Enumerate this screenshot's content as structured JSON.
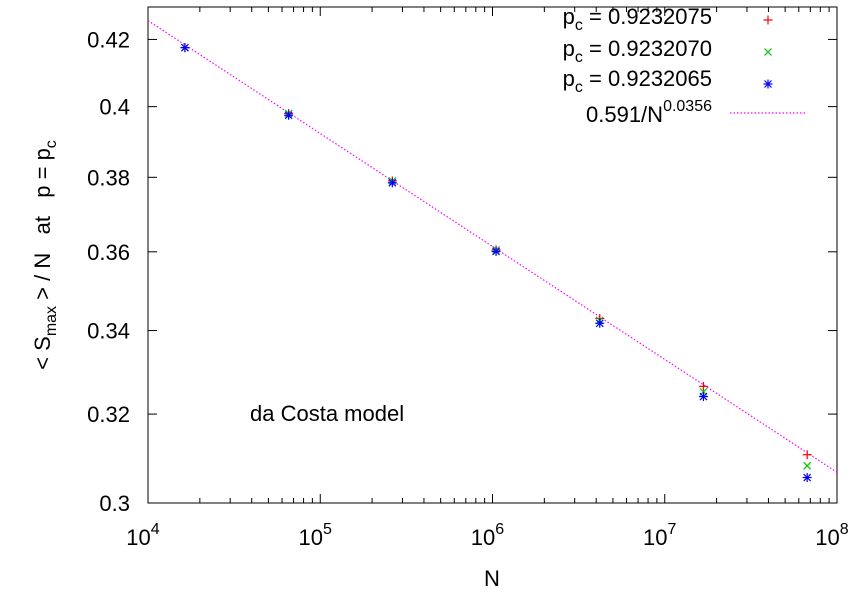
{
  "chart_data": {
    "type": "scatter",
    "xscale": "log",
    "yscale": "log",
    "xlim": [
      10000,
      100000000
    ],
    "ylim": [
      0.3,
      0.43
    ],
    "grid": false,
    "legend_position": "top-right",
    "xlabel": "N",
    "ylabel": {
      "lead": "< S",
      "sub": "max",
      "mid": " > / N   at   p = p",
      "tail_sub": "c"
    },
    "x_ticks": [
      {
        "value": 10000,
        "base": "10",
        "exp": "4"
      },
      {
        "value": 100000,
        "base": "10",
        "exp": "5"
      },
      {
        "value": 1000000,
        "base": "10",
        "exp": "6"
      },
      {
        "value": 10000000,
        "base": "10",
        "exp": "7"
      },
      {
        "value": 100000000,
        "base": "10",
        "exp": "8"
      }
    ],
    "y_ticks": [
      {
        "value": 0.3,
        "label": "0.3"
      },
      {
        "value": 0.32,
        "label": "0.32"
      },
      {
        "value": 0.34,
        "label": "0.34"
      },
      {
        "value": 0.36,
        "label": "0.36"
      },
      {
        "value": 0.38,
        "label": "0.38"
      },
      {
        "value": 0.4,
        "label": "0.4"
      },
      {
        "value": 0.42,
        "label": "0.42"
      }
    ],
    "series": [
      {
        "name": {
          "base": "p",
          "sub": "c",
          "rest": " = 0.9232075"
        },
        "marker": "plus",
        "color": "#ff0000",
        "x": [
          16384,
          65536,
          262144,
          1048576,
          4194304,
          16777216,
          67108864
        ],
        "y": [
          0.4175,
          0.398,
          0.379,
          0.3605,
          0.343,
          0.3265,
          0.3107
        ]
      },
      {
        "name": {
          "base": "p",
          "sub": "c",
          "rest": " = 0.9232070"
        },
        "marker": "cross",
        "color": "#00c000",
        "x": [
          16384,
          65536,
          262144,
          1048576,
          4194304,
          16777216,
          67108864
        ],
        "y": [
          0.4175,
          0.398,
          0.379,
          0.3605,
          0.3425,
          0.3252,
          0.3082
        ]
      },
      {
        "name": {
          "base": "p",
          "sub": "c",
          "rest": " = 0.9232065"
        },
        "marker": "star",
        "color": "#0000ff",
        "x": [
          16384,
          65536,
          262144,
          1048576,
          4194304,
          16777216,
          67108864
        ],
        "y": [
          0.4175,
          0.3975,
          0.3785,
          0.3601,
          0.3418,
          0.3241,
          0.3056
        ]
      }
    ],
    "fit": {
      "label": {
        "base": "0.591/N",
        "sup": "0.0356"
      },
      "coefficient": 0.591,
      "exponent": 0.0356,
      "color": "#ff00ff",
      "style": "dotted"
    },
    "annotations": [
      {
        "text": "da Costa model"
      }
    ]
  }
}
